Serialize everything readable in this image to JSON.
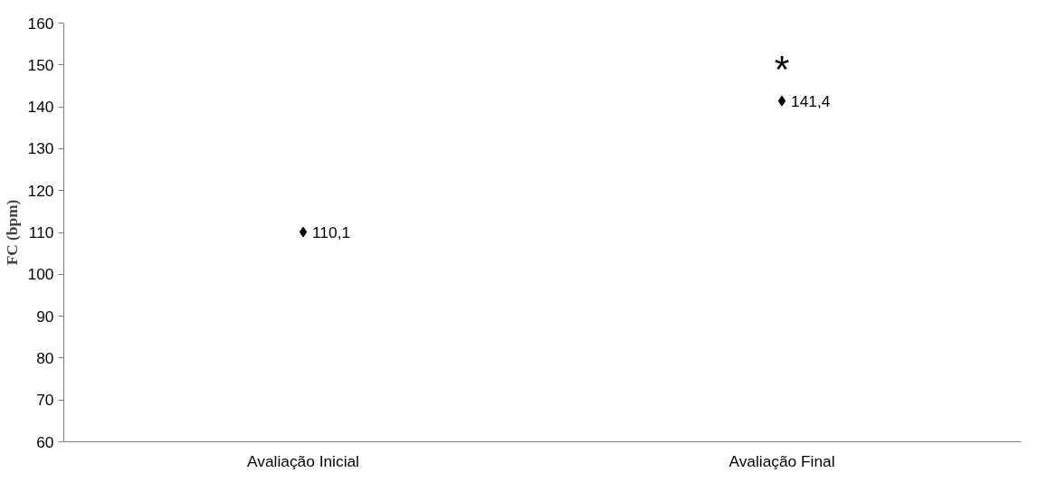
{
  "chart_data": {
    "type": "scatter",
    "ylabel": "FC (bpm)",
    "categories": [
      "Avaliação Inicial",
      "Avaliação Final"
    ],
    "series": [
      {
        "color": "#000000",
        "values": [
          110.1,
          141.4
        ],
        "value_labels": [
          "110,1",
          "141,4"
        ]
      }
    ],
    "ylim": [
      60,
      160
    ],
    "yticks": [
      60,
      70,
      80,
      90,
      100,
      110,
      120,
      130,
      140,
      150,
      160
    ],
    "grid": false,
    "marker": "diamond",
    "annotations": [
      "*"
    ]
  }
}
